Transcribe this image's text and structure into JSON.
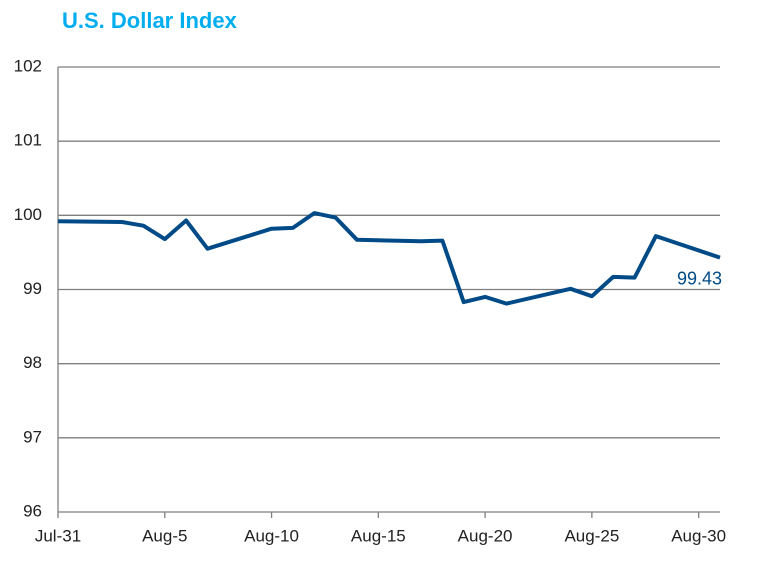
{
  "chart_data": {
    "type": "line",
    "title": "U.S. Dollar Index",
    "x": [
      "Jul-31",
      "Aug-3",
      "Aug-4",
      "Aug-5",
      "Aug-6",
      "Aug-7",
      "Aug-10",
      "Aug-11",
      "Aug-12",
      "Aug-13",
      "Aug-14",
      "Aug-17",
      "Aug-18",
      "Aug-19",
      "Aug-20",
      "Aug-21",
      "Aug-24",
      "Aug-25",
      "Aug-26",
      "Aug-27",
      "Aug-28",
      "Aug-31"
    ],
    "series": [
      {
        "name": "U.S. Dollar Index",
        "color": "#004b87",
        "values": [
          99.92,
          99.91,
          99.86,
          99.68,
          99.93,
          99.55,
          99.82,
          99.83,
          100.03,
          99.97,
          99.67,
          99.65,
          99.66,
          98.83,
          98.9,
          98.81,
          99.01,
          98.91,
          99.17,
          99.16,
          99.72,
          99.43
        ]
      }
    ],
    "xlim": [
      "Jul-31",
      "Aug-31"
    ],
    "xticks": [
      "Jul-31",
      "Aug-5",
      "Aug-10",
      "Aug-15",
      "Aug-20",
      "Aug-25",
      "Aug-30"
    ],
    "ylim": [
      96,
      102
    ],
    "yticks": [
      96,
      97,
      98,
      99,
      100,
      101,
      102
    ],
    "grid": true,
    "end_label": true,
    "title_color": "#00aeef"
  }
}
